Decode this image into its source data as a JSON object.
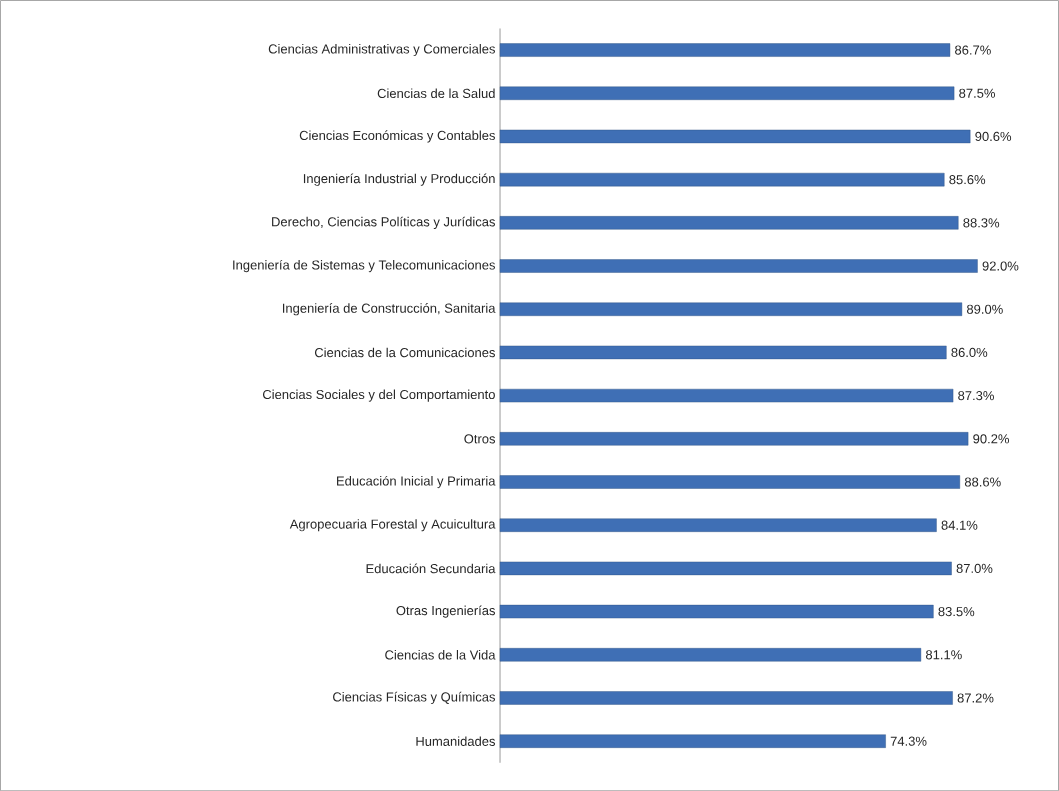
{
  "chart_data": {
    "type": "bar",
    "orientation": "horizontal",
    "categories": [
      "Ciencias Administrativas y Comerciales",
      "Ciencias de la Salud",
      "Ciencias Económicas y Contables",
      "Ingeniería Industrial y Producción",
      "Derecho, Ciencias Políticas y Jurídicas",
      "Ingeniería de Sistemas y Telecomunicaciones",
      "Ingeniería de Construcción, Sanitaria",
      "Ciencias de la Comunicaciones",
      "Ciencias Sociales y del Comportamiento",
      "Otros",
      "Educación Inicial y Primaria",
      "Agropecuaria Forestal y Acuicultura",
      "Educación Secundaria",
      "Otras Ingenierías",
      "Ciencias de la Vida",
      "Ciencias Físicas y Químicas",
      "Humanidades"
    ],
    "values": [
      86.7,
      87.5,
      90.6,
      85.6,
      88.3,
      92.0,
      89.0,
      86.0,
      87.3,
      90.2,
      88.6,
      84.1,
      87.0,
      83.5,
      81.1,
      87.2,
      74.3
    ],
    "value_labels": [
      "86.7%",
      "87.5%",
      "90.6%",
      "85.6%",
      "88.3%",
      "92.0%",
      "89.0%",
      "86.0%",
      "87.3%",
      "90.2%",
      "88.6%",
      "84.1%",
      "87.0%",
      "83.5%",
      "81.1%",
      "87.2%",
      "74.3%"
    ],
    "color": "#3f6fb5"
  }
}
